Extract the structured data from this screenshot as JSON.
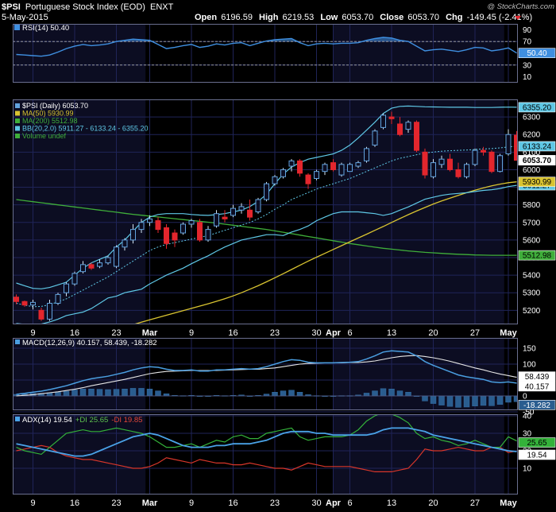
{
  "header": {
    "symbol": "$PSI",
    "name": "Portuguese Stock Index (EOD)",
    "exchange": "ENXT",
    "date": "5-May-2015",
    "open_label": "Open",
    "open": "6196.59",
    "high_label": "High",
    "high": "6219.53",
    "low_label": "Low",
    "low": "6053.70",
    "close_label": "Close",
    "close": "6053.70",
    "chg_label": "Chg",
    "chg": "-149.45 (-2.41%)",
    "watermark": "@ StockCharts.com"
  },
  "colors": {
    "background": "#000000",
    "panel": "#0c0d22",
    "grid": "#1f2458",
    "up": "#62a3df",
    "down": "#e3262d",
    "rsi": "#3f8fe0",
    "ma50": "#d9c431",
    "ma200": "#3fae3a",
    "bb": "#5fc8e6",
    "macd": "#4a9ee0",
    "signal": "#e6e6e6",
    "hist": "#2a5d8f",
    "adx": "#4aa3e8",
    "pdi": "#34b23a",
    "mdi": "#d8362a"
  },
  "x_labels": [
    {
      "i": 2,
      "t": "9"
    },
    {
      "i": 7,
      "t": "16"
    },
    {
      "i": 12,
      "t": "23"
    },
    {
      "i": 16,
      "t": "Mar"
    },
    {
      "i": 21,
      "t": "9"
    },
    {
      "i": 26,
      "t": "16"
    },
    {
      "i": 31,
      "t": "23"
    },
    {
      "i": 36,
      "t": "30"
    },
    {
      "i": 38,
      "t": "Apr"
    },
    {
      "i": 40,
      "t": "6"
    },
    {
      "i": 45,
      "t": "13"
    },
    {
      "i": 50,
      "t": "20"
    },
    {
      "i": 55,
      "t": "27"
    },
    {
      "i": 59,
      "t": "May"
    }
  ],
  "month_bands": [
    {
      "from": 16,
      "to": 37.5
    },
    {
      "from": 59,
      "to": 60.5
    }
  ],
  "panels": {
    "rsi": {
      "legend": "RSI(14) 50.40",
      "ticks": [
        "90",
        "70",
        "50",
        "30",
        "10"
      ],
      "last_label": "50.40"
    },
    "price": {
      "legend": {
        "psi": "$PSI (Daily) 6053.70",
        "ma50": "MA(50) 5930.99",
        "ma200": "MA(200) 5512.98",
        "bb": "BB(20,2.0) 5911.27 - 6133.24 - 6355.20",
        "vol": "Volume undef"
      },
      "ticks": [
        "6300",
        "6200",
        "6100",
        "6000",
        "5900",
        "5800",
        "5700",
        "5600",
        "5500",
        "5400",
        "5300",
        "5200"
      ],
      "value_labels": [
        "6355.20",
        "6133.24",
        "6053.70",
        "5930.99",
        "5911.27",
        "5512.98"
      ]
    },
    "macd": {
      "legend": "MACD(12,26,9) 40.157, 58.439, -18.282",
      "ticks": [
        "150",
        "100",
        "50",
        "0",
        "-50"
      ],
      "value_labels": [
        "58.439",
        "40.157",
        "-18.282"
      ]
    },
    "adx": {
      "legend_adx": "ADX(14) 19.54",
      "legend_pdi": "+DI 25.65",
      "legend_mdi": "-DI 19.85",
      "ticks": [
        "40",
        "30",
        "20",
        "10"
      ],
      "value_labels": [
        "25.65",
        "19.54"
      ]
    }
  },
  "chart_data": {
    "type": "candlestick",
    "title": "$PSI Portuguese Stock Index (EOD) ENXT",
    "x_range": [
      "2015-02-05",
      "2015-05-05"
    ],
    "ohlc": [
      {
        "o": 5275,
        "h": 5290,
        "l": 5235,
        "c": 5250
      },
      {
        "o": 5250,
        "h": 5255,
        "l": 5220,
        "c": 5230
      },
      {
        "o": 5230,
        "h": 5260,
        "l": 5205,
        "c": 5245
      },
      {
        "o": 5200,
        "h": 5215,
        "l": 5140,
        "c": 5150
      },
      {
        "o": 5150,
        "h": 5260,
        "l": 5140,
        "c": 5240
      },
      {
        "o": 5240,
        "h": 5300,
        "l": 5230,
        "c": 5290
      },
      {
        "o": 5300,
        "h": 5360,
        "l": 5280,
        "c": 5350
      },
      {
        "o": 5350,
        "h": 5420,
        "l": 5340,
        "c": 5410
      },
      {
        "o": 5420,
        "h": 5480,
        "l": 5410,
        "c": 5460
      },
      {
        "o": 5460,
        "h": 5470,
        "l": 5430,
        "c": 5440
      },
      {
        "o": 5450,
        "h": 5490,
        "l": 5440,
        "c": 5470
      },
      {
        "o": 5470,
        "h": 5510,
        "l": 5460,
        "c": 5500
      },
      {
        "o": 5450,
        "h": 5570,
        "l": 5440,
        "c": 5560
      },
      {
        "o": 5560,
        "h": 5610,
        "l": 5540,
        "c": 5600
      },
      {
        "o": 5600,
        "h": 5690,
        "l": 5580,
        "c": 5660
      },
      {
        "o": 5660,
        "h": 5720,
        "l": 5640,
        "c": 5700
      },
      {
        "o": 5700,
        "h": 5740,
        "l": 5680,
        "c": 5720
      },
      {
        "o": 5710,
        "h": 5730,
        "l": 5640,
        "c": 5660
      },
      {
        "o": 5670,
        "h": 5690,
        "l": 5550,
        "c": 5580
      },
      {
        "o": 5640,
        "h": 5660,
        "l": 5560,
        "c": 5600
      },
      {
        "o": 5640,
        "h": 5700,
        "l": 5630,
        "c": 5690
      },
      {
        "o": 5690,
        "h": 5720,
        "l": 5670,
        "c": 5710
      },
      {
        "o": 5700,
        "h": 5720,
        "l": 5590,
        "c": 5600
      },
      {
        "o": 5600,
        "h": 5680,
        "l": 5590,
        "c": 5660
      },
      {
        "o": 5680,
        "h": 5770,
        "l": 5670,
        "c": 5750
      },
      {
        "o": 5730,
        "h": 5770,
        "l": 5700,
        "c": 5720
      },
      {
        "o": 5740,
        "h": 5800,
        "l": 5730,
        "c": 5780
      },
      {
        "o": 5770,
        "h": 5810,
        "l": 5750,
        "c": 5790
      },
      {
        "o": 5770,
        "h": 5830,
        "l": 5710,
        "c": 5730
      },
      {
        "o": 5760,
        "h": 5840,
        "l": 5750,
        "c": 5830
      },
      {
        "o": 5830,
        "h": 5930,
        "l": 5820,
        "c": 5920
      },
      {
        "o": 5920,
        "h": 5970,
        "l": 5910,
        "c": 5960
      },
      {
        "o": 5960,
        "h": 6010,
        "l": 5950,
        "c": 6000
      },
      {
        "o": 6020,
        "h": 6060,
        "l": 5990,
        "c": 6050
      },
      {
        "o": 6050,
        "h": 6060,
        "l": 5960,
        "c": 5980
      },
      {
        "o": 5970,
        "h": 5980,
        "l": 5890,
        "c": 5920
      },
      {
        "o": 5950,
        "h": 6000,
        "l": 5940,
        "c": 5990
      },
      {
        "o": 5990,
        "h": 6040,
        "l": 5970,
        "c": 6030
      },
      {
        "o": 6040,
        "h": 6060,
        "l": 5990,
        "c": 6000
      },
      {
        "o": 5970,
        "h": 6040,
        "l": 5960,
        "c": 6030
      },
      {
        "o": 5990,
        "h": 6040,
        "l": 5990,
        "c": 6030
      },
      {
        "o": 6020,
        "h": 6050,
        "l": 6010,
        "c": 6040
      },
      {
        "o": 6050,
        "h": 6130,
        "l": 6040,
        "c": 6120
      },
      {
        "o": 6140,
        "h": 6230,
        "l": 6130,
        "c": 6220
      },
      {
        "o": 6240,
        "h": 6320,
        "l": 6230,
        "c": 6310
      },
      {
        "o": 6300,
        "h": 6330,
        "l": 6260,
        "c": 6290
      },
      {
        "o": 6260,
        "h": 6300,
        "l": 6190,
        "c": 6200
      },
      {
        "o": 6230,
        "h": 6280,
        "l": 6210,
        "c": 6270
      },
      {
        "o": 6270,
        "h": 6280,
        "l": 6100,
        "c": 6110
      },
      {
        "o": 6100,
        "h": 6120,
        "l": 5950,
        "c": 5970
      },
      {
        "o": 5960,
        "h": 6060,
        "l": 5950,
        "c": 6040
      },
      {
        "o": 6030,
        "h": 6080,
        "l": 6010,
        "c": 6060
      },
      {
        "o": 6060,
        "h": 6090,
        "l": 5990,
        "c": 6000
      },
      {
        "o": 6000,
        "h": 6040,
        "l": 5950,
        "c": 5960
      },
      {
        "o": 5960,
        "h": 6040,
        "l": 5950,
        "c": 6030
      },
      {
        "o": 6030,
        "h": 6120,
        "l": 6020,
        "c": 6110
      },
      {
        "o": 6110,
        "h": 6130,
        "l": 6080,
        "c": 6100
      },
      {
        "o": 6100,
        "h": 6110,
        "l": 5980,
        "c": 5990
      },
      {
        "o": 5990,
        "h": 6090,
        "l": 5985,
        "c": 6080
      },
      {
        "o": 6090,
        "h": 6230,
        "l": 6080,
        "c": 6200
      },
      {
        "o": 6196.59,
        "h": 6219.53,
        "l": 6053.7,
        "c": 6053.7
      }
    ],
    "ma50": [
      4900,
      4917,
      4934,
      4950,
      4966,
      4982,
      4998,
      5014,
      5030,
      5045,
      5060,
      5075,
      5090,
      5104,
      5118,
      5132,
      5146,
      5159,
      5172,
      5185,
      5198,
      5211,
      5224,
      5237,
      5251,
      5266,
      5282,
      5300,
      5320,
      5340,
      5362,
      5385,
      5408,
      5432,
      5456,
      5480,
      5502,
      5524,
      5546,
      5568,
      5590,
      5611,
      5633,
      5655,
      5677,
      5700,
      5722,
      5744,
      5765,
      5785,
      5805,
      5822,
      5838,
      5854,
      5869,
      5883,
      5896,
      5908,
      5918,
      5926,
      5930.99
    ],
    "ma200": [
      5830,
      5824,
      5818,
      5812,
      5806,
      5800,
      5794,
      5788,
      5782,
      5776,
      5770,
      5764,
      5758,
      5752,
      5746,
      5741,
      5736,
      5731,
      5726,
      5721,
      5716,
      5711,
      5706,
      5701,
      5696,
      5690,
      5684,
      5678,
      5672,
      5666,
      5660,
      5652,
      5644,
      5636,
      5628,
      5620,
      5612,
      5604,
      5596,
      5588,
      5580,
      5573,
      5566,
      5559,
      5553,
      5548,
      5543,
      5538,
      5534,
      5530,
      5527,
      5524,
      5521,
      5519,
      5517,
      5515,
      5514,
      5513,
      5513,
      5513,
      5512.98
    ],
    "bb_upper": [
      5355,
      5340,
      5325,
      5322,
      5330,
      5345,
      5360,
      5400,
      5440,
      5470,
      5490,
      5510,
      5560,
      5600,
      5650,
      5700,
      5730,
      5745,
      5750,
      5750,
      5750,
      5745,
      5742,
      5740,
      5744,
      5750,
      5760,
      5770,
      5790,
      5820,
      5860,
      5920,
      5975,
      6015,
      6040,
      6060,
      6070,
      6080,
      6090,
      6110,
      6140,
      6180,
      6225,
      6270,
      6320,
      6350,
      6360,
      6362,
      6360,
      6358,
      6357,
      6356,
      6355,
      6355,
      6355,
      6354,
      6354,
      6354,
      6355,
      6356,
      6355.2
    ],
    "bb_middle": [
      5240,
      5230,
      5220,
      5222,
      5232,
      5248,
      5265,
      5290,
      5315,
      5340,
      5365,
      5390,
      5420,
      5450,
      5480,
      5510,
      5540,
      5560,
      5575,
      5585,
      5595,
      5605,
      5615,
      5625,
      5640,
      5655,
      5670,
      5685,
      5700,
      5720,
      5745,
      5775,
      5800,
      5830,
      5850,
      5870,
      5890,
      5905,
      5920,
      5935,
      5950,
      5970,
      5990,
      6010,
      6030,
      6050,
      6065,
      6075,
      6085,
      6095,
      6100,
      6105,
      6108,
      6110,
      6112,
      6115,
      6118,
      6120,
      6124,
      6130,
      6133.24
    ],
    "bb_lower": [
      5125,
      5120,
      5115,
      5122,
      5134,
      5150,
      5170,
      5180,
      5190,
      5210,
      5240,
      5270,
      5280,
      5300,
      5310,
      5320,
      5350,
      5375,
      5400,
      5420,
      5440,
      5465,
      5488,
      5510,
      5536,
      5560,
      5580,
      5600,
      5610,
      5620,
      5630,
      5630,
      5625,
      5645,
      5660,
      5680,
      5710,
      5730,
      5750,
      5760,
      5760,
      5760,
      5755,
      5750,
      5740,
      5750,
      5770,
      5788,
      5810,
      5832,
      5843,
      5854,
      5861,
      5865,
      5869,
      5876,
      5882,
      5886,
      5893,
      5904,
      5911.27
    ],
    "rsi": [
      48,
      47,
      46,
      45,
      47,
      52,
      58,
      62,
      65,
      63,
      64,
      66,
      70,
      72,
      74,
      73,
      72,
      65,
      58,
      60,
      63,
      65,
      60,
      62,
      66,
      64,
      67,
      68,
      63,
      67,
      71,
      73,
      74,
      75,
      68,
      63,
      66,
      67,
      66,
      67,
      67,
      68,
      72,
      75,
      77,
      76,
      72,
      70,
      62,
      54,
      56,
      57,
      55,
      53,
      56,
      60,
      59,
      54,
      56,
      59,
      50.4
    ],
    "macd": [
      5,
      8,
      12,
      15,
      20,
      26,
      32,
      40,
      48,
      54,
      58,
      62,
      68,
      74,
      82,
      88,
      92,
      90,
      84,
      80,
      80,
      82,
      78,
      78,
      82,
      82,
      84,
      86,
      84,
      86,
      92,
      100,
      108,
      114,
      112,
      106,
      104,
      104,
      104,
      105,
      106,
      108,
      116,
      126,
      138,
      142,
      140,
      138,
      126,
      108,
      96,
      86,
      76,
      66,
      60,
      56,
      52,
      44,
      42,
      44,
      40.157
    ],
    "signal": [
      0,
      2,
      4,
      7,
      10,
      13,
      17,
      21,
      26,
      32,
      37,
      42,
      47,
      52,
      58,
      64,
      70,
      74,
      77,
      78,
      79,
      80,
      80,
      80,
      80,
      81,
      82,
      83,
      84,
      84,
      86,
      88,
      92,
      96,
      100,
      102,
      103,
      104,
      104,
      104,
      105,
      105,
      107,
      110,
      115,
      120,
      124,
      126,
      127,
      124,
      120,
      115,
      109,
      102,
      95,
      88,
      82,
      75,
      69,
      64,
      58.439
    ],
    "adx": [
      24,
      23,
      22,
      21,
      20,
      19,
      18,
      17,
      17,
      18,
      20,
      22,
      24,
      26,
      28,
      29,
      30,
      29,
      27,
      25,
      23,
      22,
      22,
      22,
      23,
      23,
      24,
      24,
      24,
      25,
      26,
      28,
      30,
      31,
      31,
      31,
      30,
      30,
      29,
      29,
      29,
      29,
      29,
      30,
      32,
      33,
      33,
      33,
      32,
      31,
      29,
      28,
      27,
      26,
      25,
      24,
      23,
      22,
      21,
      20,
      19.54
    ],
    "pdi": [
      22,
      20,
      19,
      18,
      22,
      26,
      30,
      31,
      32,
      31,
      31,
      32,
      33,
      32,
      31,
      30,
      28,
      25,
      22,
      22,
      23,
      24,
      22,
      24,
      26,
      25,
      28,
      29,
      27,
      27,
      30,
      31,
      32,
      33,
      28,
      26,
      27,
      28,
      28,
      28,
      29,
      32,
      37,
      40,
      42,
      41,
      39,
      36,
      30,
      27,
      28,
      26,
      25,
      23,
      24,
      26,
      24,
      22,
      22,
      28,
      25.65
    ],
    "mdi": [
      20,
      21,
      22,
      23,
      22,
      19,
      17,
      16,
      15,
      15,
      14,
      13,
      12,
      11,
      10,
      10,
      11,
      13,
      16,
      15,
      14,
      13,
      15,
      14,
      13,
      13,
      12,
      12,
      13,
      12,
      11,
      10,
      10,
      9,
      11,
      13,
      12,
      11,
      11,
      11,
      11,
      10,
      9,
      8,
      8,
      8,
      9,
      10,
      15,
      21,
      20,
      20,
      21,
      22,
      21,
      20,
      20,
      22,
      22,
      19,
      19.85
    ]
  }
}
